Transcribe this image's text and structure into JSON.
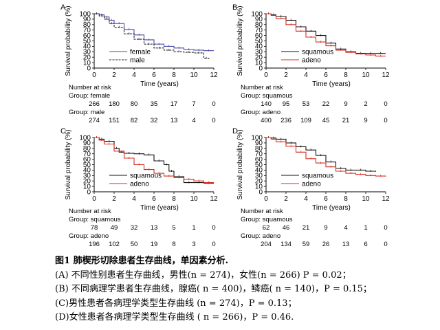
{
  "chart_data": [
    {
      "type": "line",
      "panel": "A",
      "xlabel": "Time (years)",
      "ylabel": "Survival probability (%)",
      "xlim": [
        0,
        12
      ],
      "ylim": [
        0,
        100
      ],
      "xticks": [
        0,
        2,
        4,
        6,
        8,
        10,
        12
      ],
      "yticks": [
        0,
        10,
        20,
        30,
        40,
        50,
        60,
        70,
        80,
        90,
        100
      ],
      "legend_position": "bottom-center",
      "series": [
        {
          "name": "female",
          "color": "#4a4aa8",
          "dash": "solid",
          "x": [
            0,
            0.5,
            1,
            1.5,
            2,
            3,
            4,
            5,
            6,
            7,
            8,
            9,
            10,
            11,
            12
          ],
          "y": [
            100,
            98,
            94,
            88,
            82,
            71,
            61,
            52,
            44,
            40,
            37,
            34,
            33,
            32,
            32
          ]
        },
        {
          "name": "male",
          "color": "#222222",
          "dash": "dashed",
          "x": [
            0,
            0.5,
            1,
            1.5,
            2,
            3,
            4,
            5,
            6,
            7,
            8,
            9,
            10,
            11,
            11.5
          ],
          "y": [
            100,
            96,
            90,
            82,
            75,
            63,
            53,
            44,
            37,
            33,
            30,
            29,
            28,
            18,
            16
          ]
        }
      ],
      "risk_table": {
        "header": "Number at risk",
        "groups": [
          {
            "label": "Group: female",
            "counts": [
              "266",
              "180",
              "80",
              "35",
              "17",
              "7",
              "0"
            ]
          },
          {
            "label": "Group: male",
            "counts": [
              "274",
              "151",
              "82",
              "32",
              "13",
              "4",
              "0"
            ]
          }
        ]
      }
    },
    {
      "type": "line",
      "panel": "B",
      "xlabel": "Time (years)",
      "ylabel": "Survival probability (%)",
      "xlim": [
        0,
        12
      ],
      "ylim": [
        0,
        100
      ],
      "xticks": [
        0,
        2,
        4,
        6,
        8,
        10,
        12
      ],
      "yticks": [
        0,
        10,
        20,
        30,
        40,
        50,
        60,
        70,
        80,
        90,
        100
      ],
      "legend_position": "bottom-center",
      "series": [
        {
          "name": "squamous",
          "color": "#111111",
          "dash": "solid",
          "x": [
            0,
            0.5,
            1,
            2,
            3,
            4,
            5,
            6,
            7,
            8,
            9,
            10,
            11,
            12
          ],
          "y": [
            100,
            98,
            95,
            88,
            76,
            68,
            60,
            46,
            35,
            30,
            27,
            27,
            27,
            27
          ]
        },
        {
          "name": "adeno",
          "color": "#d9291c",
          "dash": "solid",
          "x": [
            0,
            0.5,
            1,
            2,
            3,
            4,
            5,
            6,
            7,
            8,
            9,
            10,
            11,
            12
          ],
          "y": [
            100,
            97,
            91,
            80,
            68,
            57,
            48,
            41,
            33,
            29,
            26,
            24,
            22,
            22
          ]
        }
      ],
      "risk_table": {
        "header": "Number at risk",
        "groups": [
          {
            "label": "Group: squamous",
            "counts": [
              "140",
              "95",
              "53",
              "22",
              "9",
              "2",
              "0"
            ]
          },
          {
            "label": "Group: adeno",
            "counts": [
              "400",
              "236",
              "109",
              "45",
              "21",
              "9",
              "0"
            ]
          }
        ]
      }
    },
    {
      "type": "line",
      "panel": "C",
      "xlabel": "Time (years)",
      "ylabel": "Survival probability (%)",
      "xlim": [
        0,
        12
      ],
      "ylim": [
        0,
        100
      ],
      "xticks": [
        0,
        2,
        4,
        6,
        8,
        10,
        12
      ],
      "yticks": [
        0,
        10,
        20,
        30,
        40,
        50,
        60,
        70,
        80,
        90,
        100
      ],
      "legend_position": "bottom-center",
      "series": [
        {
          "name": "squamous",
          "color": "#111111",
          "dash": "solid",
          "x": [
            0,
            0.5,
            1,
            2,
            2.5,
            3,
            4,
            5,
            6,
            7,
            7.5,
            8,
            9,
            10,
            11,
            12
          ],
          "y": [
            100,
            97,
            93,
            80,
            73,
            71,
            70,
            68,
            57,
            50,
            38,
            28,
            17,
            17,
            16,
            16
          ]
        },
        {
          "name": "adeno",
          "color": "#d9291c",
          "dash": "solid",
          "x": [
            0,
            0.5,
            1,
            2,
            3,
            4,
            5,
            6,
            7,
            8,
            9,
            10,
            11,
            12
          ],
          "y": [
            100,
            95,
            88,
            75,
            62,
            50,
            41,
            34,
            29,
            26,
            23,
            20,
            17,
            17
          ]
        }
      ],
      "risk_table": {
        "header": "Number at risk",
        "groups": [
          {
            "label": "Group: squamous",
            "counts": [
              "78",
              "49",
              "32",
              "13",
              "5",
              "1",
              "0"
            ]
          },
          {
            "label": "Group: adeno",
            "counts": [
              "196",
              "102",
              "50",
              "19",
              "8",
              "3",
              "0"
            ]
          }
        ]
      }
    },
    {
      "type": "line",
      "panel": "D",
      "xlabel": "Time (years)",
      "ylabel": "Survival probability (%)",
      "xlim": [
        0,
        12
      ],
      "ylim": [
        0,
        100
      ],
      "xticks": [
        0,
        2,
        4,
        6,
        8,
        10,
        12
      ],
      "yticks": [
        0,
        10,
        20,
        30,
        40,
        50,
        60,
        70,
        80,
        90,
        100
      ],
      "legend_position": "bottom-center",
      "series": [
        {
          "name": "squamous",
          "color": "#111111",
          "dash": "solid",
          "x": [
            0,
            0.5,
            1,
            2,
            3,
            4,
            5,
            6,
            7,
            8,
            9,
            10,
            11
          ],
          "y": [
            100,
            99,
            97,
            90,
            83,
            77,
            67,
            55,
            43,
            40,
            40,
            38,
            37
          ]
        },
        {
          "name": "adeno",
          "color": "#d9291c",
          "dash": "solid",
          "x": [
            0,
            0.5,
            1,
            2,
            3,
            4,
            5,
            6,
            7,
            8,
            9,
            10,
            11,
            12
          ],
          "y": [
            100,
            97,
            92,
            84,
            73,
            61,
            53,
            46,
            38,
            34,
            32,
            30,
            29,
            28
          ]
        }
      ],
      "risk_table": {
        "header": "Number at risk",
        "groups": [
          {
            "label": "Group: squamous",
            "counts": [
              "62",
              "46",
              "21",
              "9",
              "4",
              "1",
              "0"
            ]
          },
          {
            "label": "Group: adeno",
            "counts": [
              "204",
              "134",
              "59",
              "26",
              "13",
              "6",
              "0"
            ]
          }
        ]
      }
    }
  ],
  "caption": {
    "title": "图1 肺楔形切除患者生存曲线，单因素分析.",
    "lines": [
      "(A) 不同性别患者生存曲线，男性(n = 274)，女性(n = 266) P = 0.02；",
      "(B) 不同病理学患者生存曲线，腺癌( n = 400)，鳞癌( n = 140)，P = 0.15；",
      "(C)男性患者各病理学类型生存曲线 (n = 274)，P = 0.13；",
      "(D)女性患者各病理学类型生存曲线 ( n = 266)，P = 0.46."
    ]
  }
}
